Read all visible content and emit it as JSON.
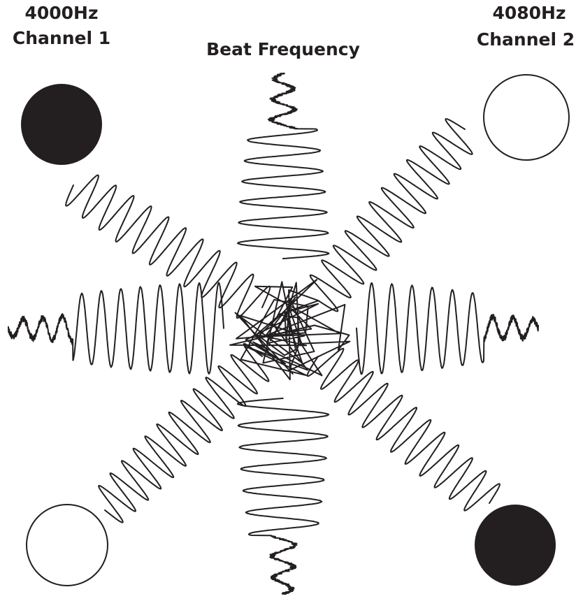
{
  "labels": {
    "channel_1": {
      "frequency": "4000Hz",
      "name": "Channel 1"
    },
    "channel_2": {
      "frequency": "4080Hz",
      "name": "Channel 2"
    },
    "beat": "Beat Frequency"
  }
}
